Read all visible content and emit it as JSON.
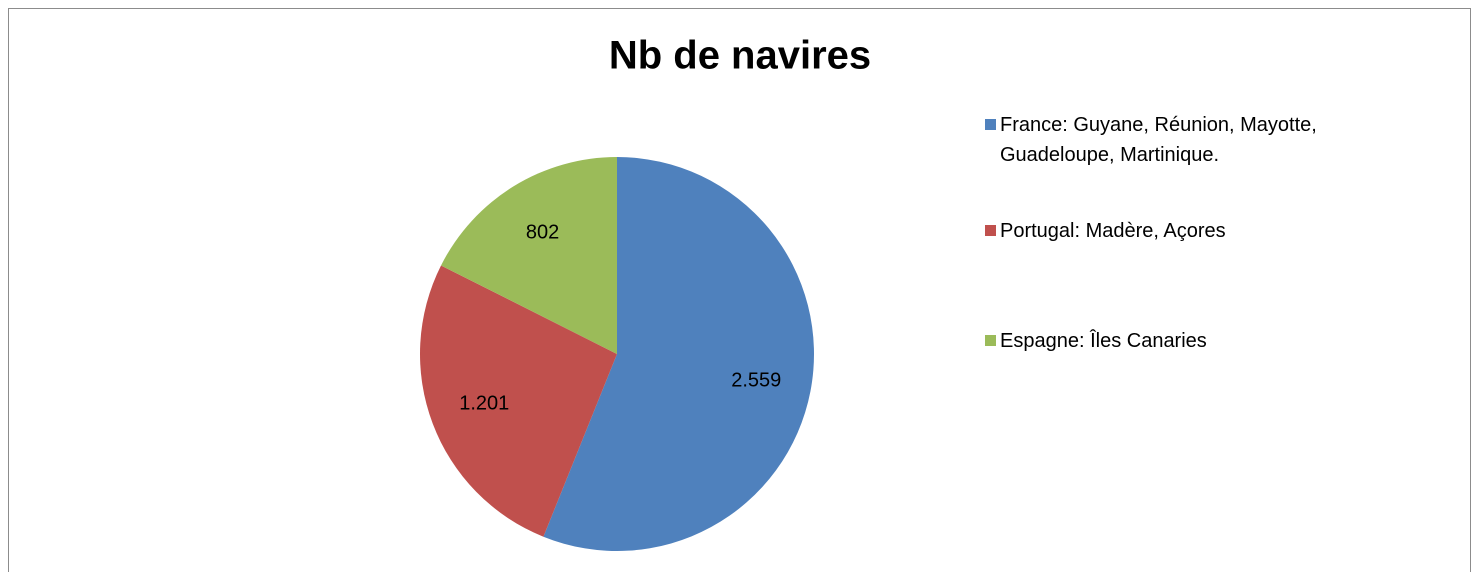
{
  "chart_data": {
    "type": "pie",
    "title": "Nb de navires",
    "categories": [
      "France: Guyane, Réunion, Mayotte, Guadeloupe, Martinique.",
      "Portugal: Madère, Açores",
      "Espagne: Îles Canaries"
    ],
    "values": [
      2559,
      1201,
      802
    ],
    "value_labels": [
      "2.559",
      "1.201",
      "802"
    ],
    "colors": [
      "#4f81bd",
      "#c0504d",
      "#9bbb59"
    ],
    "legend": "right"
  }
}
